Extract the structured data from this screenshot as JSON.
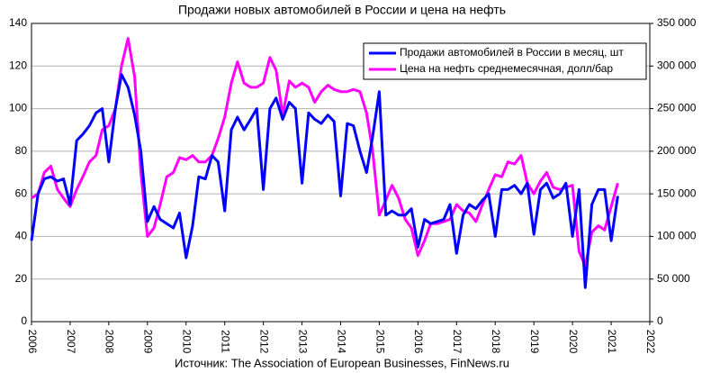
{
  "chart_data": {
    "type": "line",
    "title": "Продажи новых автомобилей в России и цена на нефть",
    "source": "Источник: The Association of European Businesses, FinNews.ru",
    "x": [
      2006.0,
      2006.17,
      2006.33,
      2006.5,
      2006.67,
      2006.83,
      2007.0,
      2007.17,
      2007.33,
      2007.5,
      2007.67,
      2007.83,
      2008.0,
      2008.17,
      2008.33,
      2008.5,
      2008.67,
      2008.83,
      2009.0,
      2009.17,
      2009.33,
      2009.5,
      2009.67,
      2009.83,
      2010.0,
      2010.17,
      2010.33,
      2010.5,
      2010.67,
      2010.83,
      2011.0,
      2011.17,
      2011.33,
      2011.5,
      2011.67,
      2011.83,
      2012.0,
      2012.17,
      2012.33,
      2012.5,
      2012.67,
      2012.83,
      2013.0,
      2013.17,
      2013.33,
      2013.5,
      2013.67,
      2013.83,
      2014.0,
      2014.17,
      2014.33,
      2014.5,
      2014.67,
      2014.83,
      2015.0,
      2015.17,
      2015.33,
      2015.5,
      2015.67,
      2015.83,
      2016.0,
      2016.17,
      2016.33,
      2016.5,
      2016.67,
      2016.83,
      2017.0,
      2017.17,
      2017.33,
      2017.5,
      2017.67,
      2017.83,
      2018.0,
      2018.17,
      2018.33,
      2018.5,
      2018.67,
      2018.83,
      2019.0,
      2019.17,
      2019.33,
      2019.5,
      2019.67,
      2019.83,
      2020.0,
      2020.17,
      2020.33,
      2020.5,
      2020.67,
      2020.83,
      2021.0,
      2021.17
    ],
    "series": [
      {
        "name": "Продажи  автомобилей в России в месяц, шт",
        "color": "#0000ff",
        "axis": "y2",
        "values": [
          95000,
          150000,
          167500,
          170000,
          165000,
          167500,
          137500,
          212500,
          220000,
          230000,
          245000,
          250000,
          187500,
          250000,
          290000,
          275000,
          242500,
          200000,
          117500,
          135000,
          120000,
          115000,
          110000,
          127500,
          75000,
          112500,
          170000,
          167500,
          195000,
          187500,
          130000,
          225000,
          240000,
          225000,
          237500,
          250000,
          155000,
          250000,
          262500,
          237500,
          257500,
          250000,
          162500,
          245000,
          237500,
          232500,
          242500,
          235000,
          147500,
          232500,
          230000,
          200000,
          175000,
          217500,
          270000,
          125000,
          130000,
          125000,
          125000,
          132500,
          87500,
          120000,
          115000,
          117500,
          120000,
          137500,
          80000,
          125000,
          137500,
          132500,
          142500,
          150000,
          100000,
          155000,
          155000,
          160000,
          150000,
          162500,
          102500,
          155000,
          162500,
          145000,
          150000,
          162500,
          100000,
          155000,
          40000,
          137500,
          155000,
          155000,
          95000,
          147500
        ]
      },
      {
        "name": "Цена на нефть среднемесячная, долл/бар",
        "color": "#ff00ff",
        "values": [
          58,
          60,
          70,
          73,
          62,
          58,
          54,
          62,
          68,
          75,
          78,
          90,
          92,
          100,
          120,
          133,
          115,
          70,
          40,
          44,
          55,
          68,
          70,
          77,
          76,
          78,
          75,
          75,
          78,
          86,
          96,
          112,
          122,
          112,
          110,
          110,
          112,
          124,
          118,
          97,
          113,
          110,
          112,
          110,
          103,
          108,
          111,
          109,
          108,
          108,
          109,
          108,
          98,
          80,
          50,
          57,
          64,
          58,
          48,
          44,
          31,
          38,
          46,
          46,
          47,
          48,
          55,
          52,
          51,
          47,
          55,
          62,
          69,
          68,
          75,
          74,
          78,
          65,
          60,
          66,
          70,
          63,
          62,
          63,
          64,
          33,
          26,
          42,
          45,
          43,
          54,
          65
        ]
      }
    ],
    "xlim": [
      2006,
      2022
    ],
    "xticks": [
      2006,
      2007,
      2008,
      2009,
      2010,
      2011,
      2012,
      2013,
      2014,
      2015,
      2016,
      2017,
      2018,
      2019,
      2020,
      2021,
      2022
    ],
    "ylim": [
      0,
      140
    ],
    "yticks": [
      0,
      20,
      40,
      60,
      80,
      100,
      120,
      140
    ],
    "y2lim": [
      0,
      350000
    ],
    "y2ticks": [
      {
        "value": 0,
        "label": "0"
      },
      {
        "value": 50000,
        "label": "50 000"
      },
      {
        "value": 100000,
        "label": "100 000"
      },
      {
        "value": 150000,
        "label": "150 000"
      },
      {
        "value": 200000,
        "label": "200 000"
      },
      {
        "value": 250000,
        "label": "250 000"
      },
      {
        "value": 300000,
        "label": "300 000"
      },
      {
        "value": 350000,
        "label": "350 000"
      }
    ],
    "grid": true,
    "legend": "upper right"
  }
}
